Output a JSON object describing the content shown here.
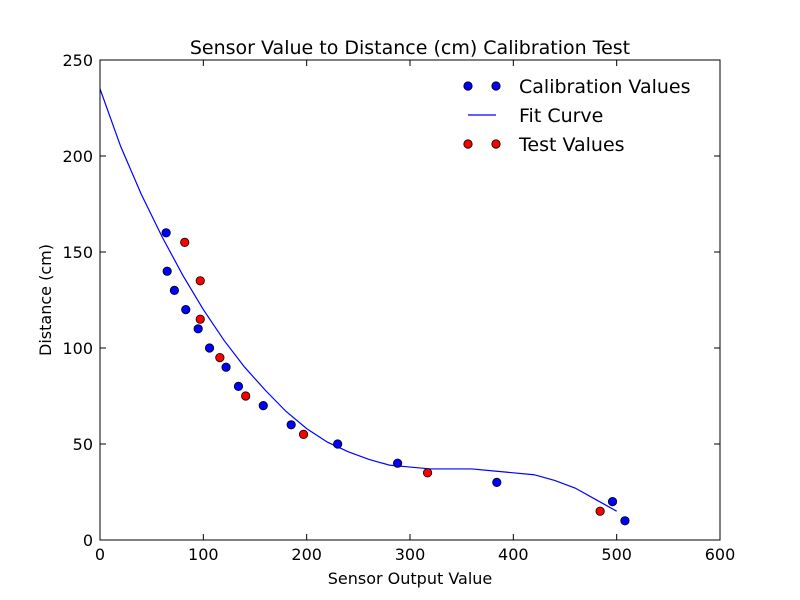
{
  "chart_data": {
    "type": "scatter",
    "title": "Sensor Value to Distance (cm) Calibration Test",
    "xlabel": "Sensor Output Value",
    "ylabel": "Distance (cm)",
    "xlim": [
      0,
      600
    ],
    "ylim": [
      0,
      250
    ],
    "xticks": [
      0,
      100,
      200,
      300,
      400,
      500,
      600
    ],
    "yticks": [
      0,
      50,
      100,
      150,
      200,
      250
    ],
    "grid": false,
    "legend_position": "top-right",
    "legend": [
      {
        "label": "Calibration Values",
        "kind": "markers",
        "color": "#0000ff"
      },
      {
        "label": "Fit Curve",
        "kind": "line",
        "color": "#0000ff"
      },
      {
        "label": "Test Values",
        "kind": "markers",
        "color": "#ff0000"
      }
    ],
    "series": [
      {
        "name": "Calibration Values",
        "kind": "markers",
        "color": "#0000ff",
        "points": [
          [
            64,
            160
          ],
          [
            65,
            140
          ],
          [
            72,
            130
          ],
          [
            83,
            120
          ],
          [
            95,
            110
          ],
          [
            106,
            100
          ],
          [
            122,
            90
          ],
          [
            134,
            80
          ],
          [
            158,
            70
          ],
          [
            185,
            60
          ],
          [
            230,
            50
          ],
          [
            288,
            40
          ],
          [
            384,
            30
          ],
          [
            496,
            20
          ],
          [
            508,
            10
          ]
        ]
      },
      {
        "name": "Fit Curve",
        "kind": "line",
        "color": "#0000ff",
        "points": [
          [
            0,
            235
          ],
          [
            20,
            205
          ],
          [
            40,
            180
          ],
          [
            60,
            158
          ],
          [
            80,
            138
          ],
          [
            100,
            120
          ],
          [
            120,
            104
          ],
          [
            140,
            90
          ],
          [
            160,
            78
          ],
          [
            180,
            67
          ],
          [
            200,
            58
          ],
          [
            220,
            51
          ],
          [
            240,
            46
          ],
          [
            260,
            42
          ],
          [
            280,
            39
          ],
          [
            300,
            38
          ],
          [
            320,
            37
          ],
          [
            340,
            37
          ],
          [
            360,
            37
          ],
          [
            380,
            36
          ],
          [
            400,
            35
          ],
          [
            420,
            34
          ],
          [
            440,
            31
          ],
          [
            460,
            27
          ],
          [
            480,
            21
          ],
          [
            500,
            15
          ]
        ]
      },
      {
        "name": "Test Values",
        "kind": "markers",
        "color": "#ff0000",
        "points": [
          [
            82,
            155
          ],
          [
            97,
            135
          ],
          [
            97,
            115
          ],
          [
            116,
            95
          ],
          [
            141,
            75
          ],
          [
            197,
            55
          ],
          [
            317,
            35
          ],
          [
            484,
            15
          ]
        ]
      }
    ]
  }
}
